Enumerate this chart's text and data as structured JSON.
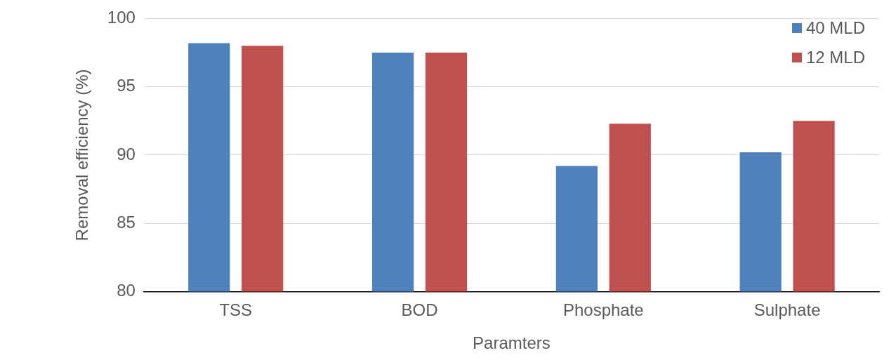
{
  "chart_data": {
    "type": "bar",
    "xlabel": "Paramters",
    "ylabel": "Removal efficiency (%)",
    "categories": [
      "TSS",
      "BOD",
      "Phosphate",
      "Sulphate"
    ],
    "series": [
      {
        "name": "40 MLD",
        "color": "#4f81bd",
        "values": [
          98.2,
          97.5,
          89.2,
          90.2
        ]
      },
      {
        "name": "12 MLD",
        "color": "#c0504d",
        "values": [
          98.0,
          97.5,
          92.3,
          92.5
        ]
      }
    ],
    "ylim": [
      80,
      100
    ],
    "yticks": [
      80,
      85,
      90,
      95,
      100
    ],
    "grid": "y",
    "legend": "top right"
  }
}
